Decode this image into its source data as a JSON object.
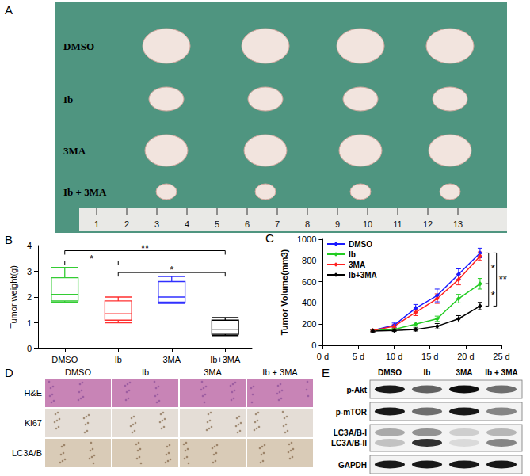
{
  "panels": {
    "A": {
      "letter": "A",
      "rows": [
        "DMSO",
        "Ib",
        "3MA",
        "Ib + 3MA"
      ],
      "ruler": [
        1,
        2,
        3,
        4,
        5,
        6,
        7,
        8,
        9,
        10,
        11,
        12,
        13
      ]
    },
    "D": {
      "letter": "D",
      "columns": [
        "DMSO",
        "Ib",
        "3MA",
        "Ib + 3MA"
      ],
      "rows": [
        "H&E",
        "Ki67",
        "LC3A/B"
      ]
    },
    "E": {
      "letter": "E",
      "columns": [
        "DMSO",
        "Ib",
        "3MA",
        "Ib + 3MA"
      ],
      "rows": [
        {
          "labels": [
            "p-Akt"
          ],
          "bands": [
            [
              0.9,
              0.6,
              0.95,
              0.55
            ]
          ]
        },
        {
          "labels": [
            "p-mTOR"
          ],
          "bands": [
            [
              0.9,
              0.55,
              0.9,
              0.45
            ]
          ]
        },
        {
          "labels": [
            "LC3A/B-I",
            "LC3A/B-II"
          ],
          "bands": [
            [
              0.3,
              0.4,
              0.15,
              0.25
            ],
            [
              0.2,
              0.8,
              0.1,
              0.45
            ]
          ]
        },
        {
          "labels": [
            "GAPDH"
          ],
          "bands": [
            [
              0.9,
              0.9,
              0.9,
              0.9
            ]
          ]
        }
      ]
    }
  },
  "chart_data": [
    {
      "panel": "B",
      "type": "boxplot",
      "categories": [
        "DMSO",
        "Ib",
        "3MA",
        "Ib+3MA"
      ],
      "boxes": [
        [
          1.8,
          1.85,
          2.1,
          2.75,
          3.15
        ],
        [
          1.0,
          1.1,
          1.35,
          1.85,
          2.0
        ],
        [
          1.75,
          1.8,
          2.0,
          2.6,
          2.8
        ],
        [
          0.5,
          0.55,
          0.75,
          1.1,
          1.2
        ]
      ],
      "colors": [
        "#33cc33",
        "#ff3030",
        "#3030ff",
        "#000000"
      ],
      "ylabel": "Tumor weight(g)",
      "ylim": [
        0,
        4
      ],
      "yticks": [
        0,
        1,
        2,
        3,
        4
      ],
      "annotations": [
        {
          "from": "DMSO",
          "to": "Ib",
          "y": 3.4,
          "text": "*"
        },
        {
          "from": "DMSO",
          "to": "Ib+3MA",
          "y": 3.8,
          "text": "**"
        },
        {
          "from": "Ib",
          "to": "Ib+3MA",
          "y": 2.95,
          "text": "*"
        }
      ]
    },
    {
      "panel": "C",
      "type": "line",
      "x": [
        7,
        10,
        13,
        16,
        19,
        22
      ],
      "series": [
        {
          "name": "DMSO",
          "color": "#1a1aff",
          "marker": "diamond",
          "values": [
            140,
            190,
            350,
            470,
            670,
            870
          ],
          "errors": [
            10,
            20,
            35,
            60,
            50,
            45
          ]
        },
        {
          "name": "Ib",
          "color": "#22cc22",
          "marker": "diamond",
          "values": [
            140,
            150,
            200,
            250,
            440,
            580
          ],
          "errors": [
            10,
            10,
            20,
            25,
            40,
            50
          ]
        },
        {
          "name": "3MA",
          "color": "#ff2020",
          "marker": "diamond",
          "values": [
            140,
            180,
            310,
            440,
            620,
            840
          ],
          "errors": [
            10,
            15,
            30,
            45,
            50,
            40
          ]
        },
        {
          "name": "Ib+3MA",
          "color": "#000000",
          "marker": "diamond",
          "values": [
            135,
            140,
            150,
            180,
            250,
            370
          ],
          "errors": [
            10,
            10,
            15,
            25,
            30,
            35
          ]
        }
      ],
      "xlim": [
        0,
        25
      ],
      "xticks": [
        {
          "value": 0,
          "label": "0 d"
        },
        {
          "value": 5,
          "label": "5 d"
        },
        {
          "value": 10,
          "label": "10 d"
        },
        {
          "value": 15,
          "label": "15 d"
        },
        {
          "value": 20,
          "label": "20 d"
        },
        {
          "value": 25,
          "label": "25 d"
        }
      ],
      "ylim": [
        0,
        1000
      ],
      "yticks": [
        0,
        200,
        400,
        600,
        800,
        1000
      ],
      "ylabel": "Tumor Volume(mm3)",
      "legend": "upper left",
      "annotations": [
        {
          "x": 23.2,
          "y1": 870,
          "y2": 580,
          "text": "*"
        },
        {
          "x": 23.2,
          "y1": 580,
          "y2": 370,
          "text": "*"
        },
        {
          "x": 24.3,
          "y1": 870,
          "y2": 370,
          "text": "**"
        }
      ]
    }
  ]
}
